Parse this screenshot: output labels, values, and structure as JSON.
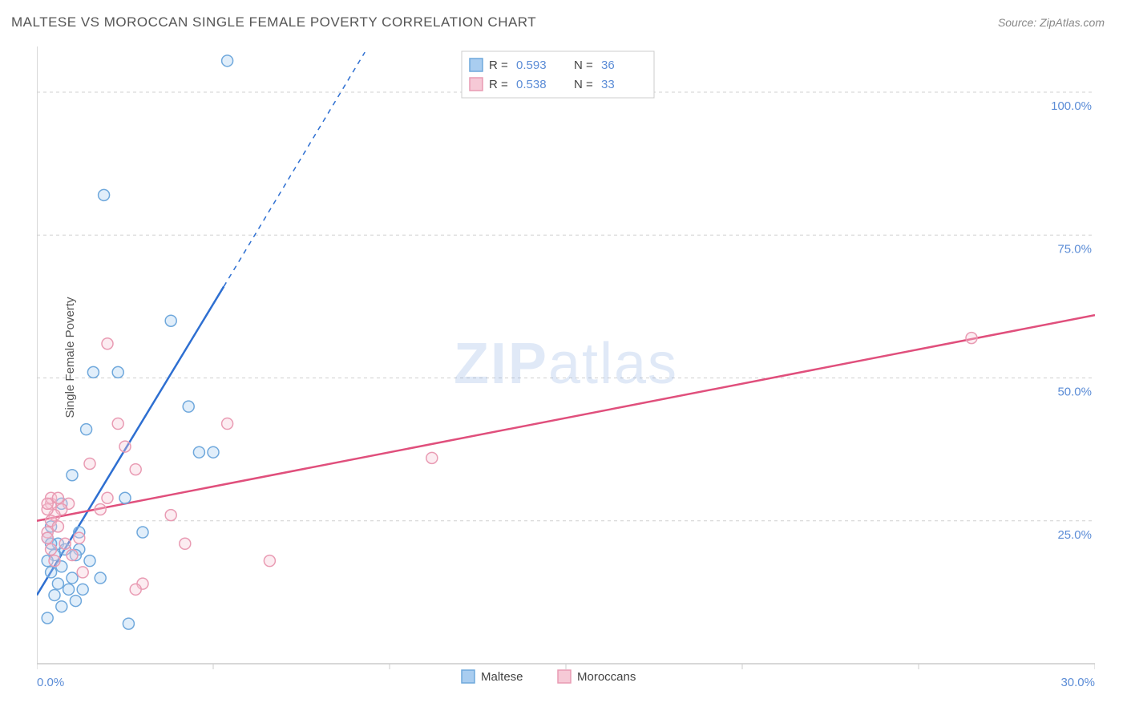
{
  "title": "MALTESE VS MOROCCAN SINGLE FEMALE POVERTY CORRELATION CHART",
  "source": "Source: ZipAtlas.com",
  "ylabel": "Single Female Poverty",
  "watermark": {
    "part1": "ZIP",
    "part2": "atlas"
  },
  "chart": {
    "type": "scatter",
    "background_color": "#ffffff",
    "grid_color": "#d0d0d0",
    "axis_color": "#cccccc",
    "tick_label_color": "#5b8cd6",
    "xlim": [
      0,
      30
    ],
    "ylim": [
      0,
      108
    ],
    "x_ticks": [
      0,
      5,
      10,
      15,
      20,
      25,
      30
    ],
    "x_tick_labels": {
      "0": "0.0%",
      "30": "30.0%"
    },
    "y_ticks": [
      25,
      50,
      75,
      100
    ],
    "y_tick_labels": {
      "25": "25.0%",
      "50": "50.0%",
      "75": "75.0%",
      "100": "100.0%"
    },
    "marker_radius": 7,
    "series": [
      {
        "name": "Maltese",
        "color_stroke": "#6fa8dc",
        "color_fill": "#a9cdf0",
        "trend_color": "#2e6fd1",
        "R": "0.593",
        "N": "36",
        "trend": {
          "x1": 0,
          "y1": 12,
          "x2": 5.3,
          "y2": 66,
          "x2_dash": 9.3,
          "y2_dash": 107
        },
        "points": [
          [
            5.4,
            105.5
          ],
          [
            1.9,
            82
          ],
          [
            3.8,
            60
          ],
          [
            1.6,
            51
          ],
          [
            2.3,
            51
          ],
          [
            4.3,
            45
          ],
          [
            1.4,
            41
          ],
          [
            4.6,
            37
          ],
          [
            5.0,
            37
          ],
          [
            1.0,
            33
          ],
          [
            2.5,
            29
          ],
          [
            0.7,
            28
          ],
          [
            0.4,
            24
          ],
          [
            3.0,
            23
          ],
          [
            1.2,
            23
          ],
          [
            0.3,
            22
          ],
          [
            0.6,
            21
          ],
          [
            0.4,
            21
          ],
          [
            0.8,
            20
          ],
          [
            1.2,
            20
          ],
          [
            0.5,
            19
          ],
          [
            1.1,
            19
          ],
          [
            0.3,
            18
          ],
          [
            1.5,
            18
          ],
          [
            0.7,
            17
          ],
          [
            0.4,
            16
          ],
          [
            1.0,
            15
          ],
          [
            1.8,
            15
          ],
          [
            0.6,
            14
          ],
          [
            0.9,
            13
          ],
          [
            1.3,
            13
          ],
          [
            0.5,
            12
          ],
          [
            1.1,
            11
          ],
          [
            0.7,
            10
          ],
          [
            2.6,
            7
          ],
          [
            0.3,
            8
          ]
        ]
      },
      {
        "name": "Moroccans",
        "color_stroke": "#e99bb3",
        "color_fill": "#f6c9d6",
        "trend_color": "#e04f7c",
        "R": "0.538",
        "N": "33",
        "trend": {
          "x1": 0,
          "y1": 25,
          "x2": 30,
          "y2": 61
        },
        "points": [
          [
            26.5,
            57
          ],
          [
            11.2,
            36
          ],
          [
            6.6,
            18
          ],
          [
            5.4,
            42
          ],
          [
            3.8,
            26
          ],
          [
            4.2,
            21
          ],
          [
            3.0,
            14
          ],
          [
            2.5,
            38
          ],
          [
            2.8,
            34
          ],
          [
            2.0,
            56
          ],
          [
            2.3,
            42
          ],
          [
            1.5,
            35
          ],
          [
            1.8,
            27
          ],
          [
            1.2,
            22
          ],
          [
            0.9,
            28
          ],
          [
            0.7,
            27
          ],
          [
            0.4,
            28
          ],
          [
            0.5,
            26
          ],
          [
            0.3,
            27
          ],
          [
            0.4,
            25
          ],
          [
            0.6,
            24
          ],
          [
            0.3,
            23
          ],
          [
            0.8,
            21
          ],
          [
            0.4,
            20
          ],
          [
            1.0,
            19
          ],
          [
            0.5,
            18
          ],
          [
            0.3,
            22
          ],
          [
            1.3,
            16
          ],
          [
            2.0,
            29
          ],
          [
            2.8,
            13
          ],
          [
            0.4,
            29
          ],
          [
            0.6,
            29
          ],
          [
            0.3,
            28
          ]
        ]
      }
    ]
  },
  "legend_top": {
    "R_label": "R =",
    "N_label": "N ="
  },
  "legend_bottom": [
    {
      "label": "Maltese",
      "fill": "#a9cdf0",
      "stroke": "#6fa8dc"
    },
    {
      "label": "Moroccans",
      "fill": "#f6c9d6",
      "stroke": "#e99bb3"
    }
  ]
}
